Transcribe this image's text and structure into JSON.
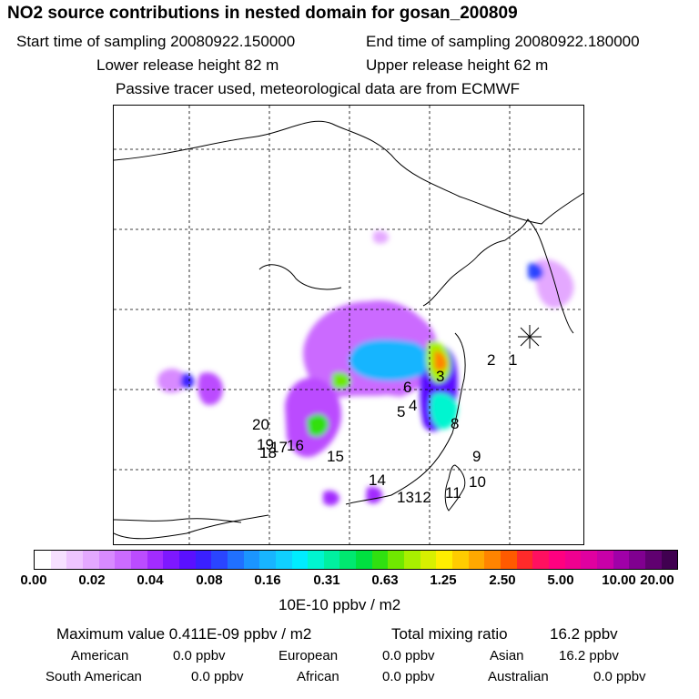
{
  "title": "NO2 source contributions in nested domain for gosan_200809",
  "header": {
    "start": "Start time of sampling 20080922.150000",
    "end": "End time of sampling 20080922.180000",
    "lower": "Lower release height   82 m",
    "upper": "Upper release height   62 m",
    "note": "Passive tracer used, meteorological data are from ECMWF"
  },
  "map": {
    "receptor_marker": "star-marker",
    "source_labels": [
      "1",
      "2",
      "3",
      "4",
      "5",
      "6",
      "8",
      "9",
      "10",
      "11",
      "1312",
      "14",
      "15",
      "16",
      "17",
      "18",
      "19",
      "20"
    ]
  },
  "colorbar": {
    "ticks": [
      "0.00",
      "0.02",
      "0.04",
      "0.08",
      "0.16",
      "0.31",
      "0.63",
      "1.25",
      "2.50",
      "5.00",
      "10.00",
      "20.00"
    ],
    "unit": "10E-10 ppbv / m2",
    "colors": [
      "#ffffff",
      "#f6e0ff",
      "#eec4ff",
      "#e4a8ff",
      "#d88aff",
      "#cb6bff",
      "#bb4cff",
      "#a22cff",
      "#7e18ff",
      "#5a10ff",
      "#3a20ff",
      "#2a45ff",
      "#2070ff",
      "#1b95ff",
      "#18b5ff",
      "#10d0ff",
      "#00ecff",
      "#00f5d0",
      "#00f0a0",
      "#00e870",
      "#00e040",
      "#30e010",
      "#70e800",
      "#a8f000",
      "#d8f000",
      "#ffee00",
      "#ffcc00",
      "#ffa800",
      "#ff8400",
      "#ff5a00",
      "#ff2a2a",
      "#ff1060",
      "#ff0080",
      "#f00090",
      "#e000a0",
      "#c800a8",
      "#a000a8",
      "#800090",
      "#600070",
      "#400050"
    ]
  },
  "stats": {
    "max_label": "Maximum value  0.411E-09 ppbv / m2",
    "total_label": "Total mixing ratio",
    "total_value": "16.2 ppbv",
    "american_label": "American",
    "american_value": "0.0 ppbv",
    "european_label": "European",
    "european_value": "0.0 ppbv",
    "asian_label": "Asian",
    "asian_value": "16.2 ppbv",
    "south_american_label": "South American",
    "south_american_value": "0.0 ppbv",
    "african_label": "African",
    "african_value": "0.0 ppbv",
    "australian_label": "Australian",
    "australian_value": "0.0 ppbv"
  }
}
